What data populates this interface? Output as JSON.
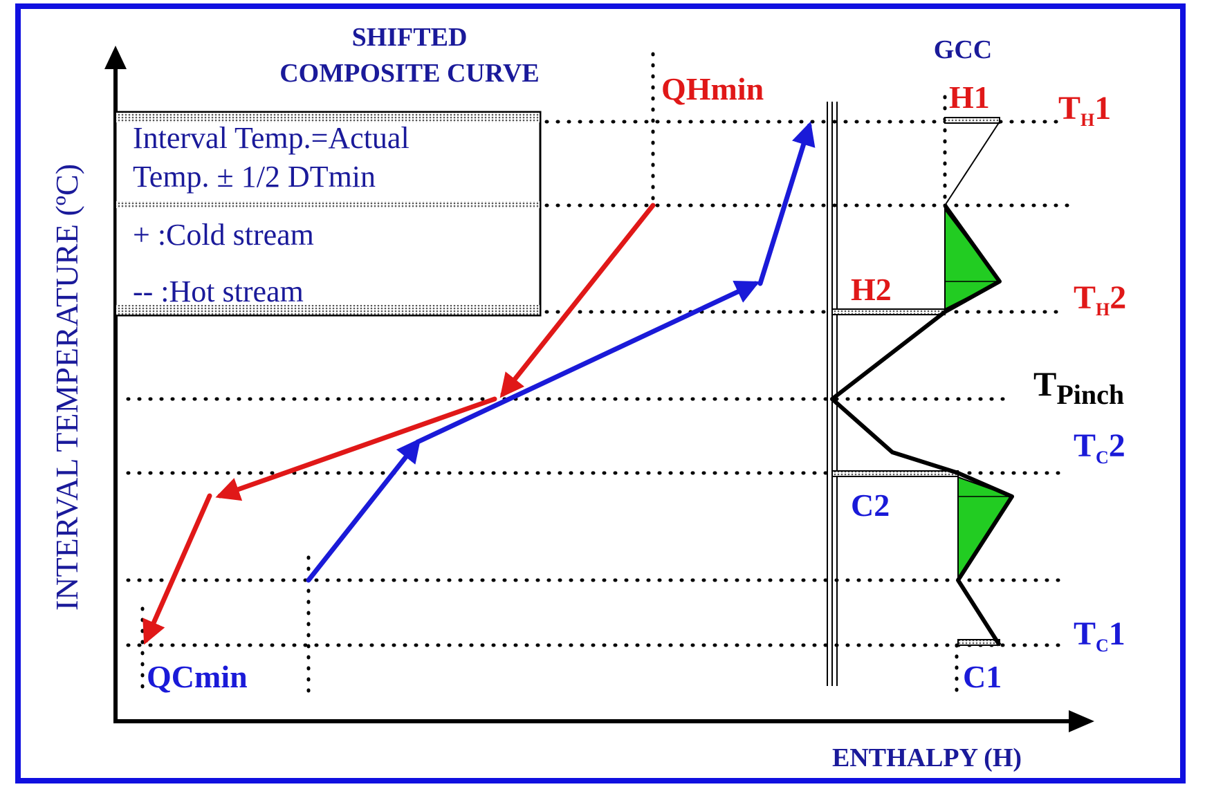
{
  "title": {
    "line1": "SHIFTED",
    "line2": "COMPOSITE CURVE"
  },
  "gcc_title": "GCC",
  "legend": {
    "line1": "Interval Temp.=Actual",
    "line2": "Temp. ± 1/2 DTmin",
    "cold": "+ :Cold stream",
    "hot": "-- :Hot stream"
  },
  "axes": {
    "y_label": "INTERVAL TEMPERATURE (ºC)",
    "x_label": "ENTHALPY (H)"
  },
  "labels": {
    "qhmin": "QHmin",
    "qcmin": "QCmin",
    "h1": "H1",
    "h2": "H2",
    "c1": "C1",
    "c2": "C2"
  },
  "temps": {
    "th1_main": "T",
    "th1_sub": "H",
    "th1_num": "1",
    "th2_main": "T",
    "th2_sub": "H",
    "th2_num": "2",
    "tpinch_main": "T",
    "tpinch_sub": "Pinch",
    "tc2_main": "T",
    "tc2_sub": "C",
    "tc2_num": "2",
    "tc1_main": "T",
    "tc1_sub": "C",
    "tc1_num": "1"
  },
  "colors": {
    "frame": "#1010e0",
    "hot": "#e01818",
    "cold": "#1a1ad8",
    "hot_label": "#e01818",
    "cold_label": "#1a1ad8",
    "title_blue": "#1a1a9a",
    "pocket": "#22cc22",
    "gcc_line": "#000000"
  }
}
